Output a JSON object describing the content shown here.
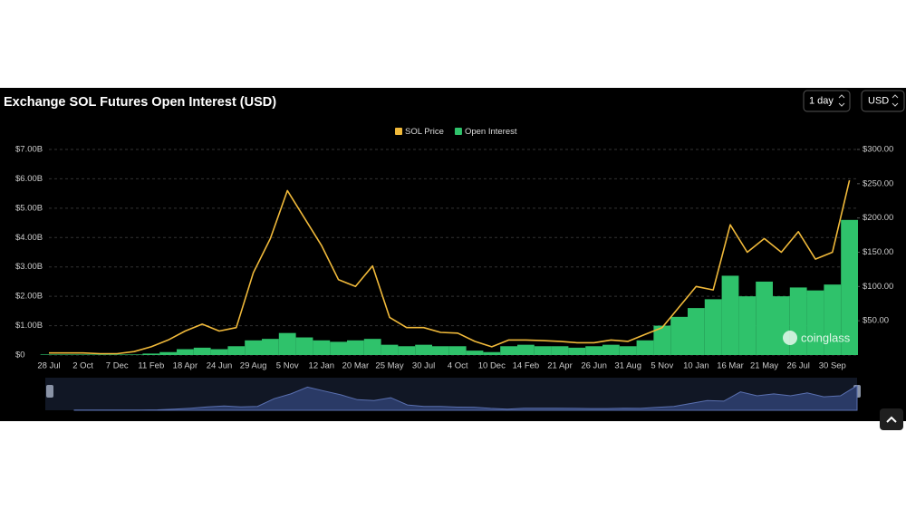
{
  "chart_data": {
    "type": "combo",
    "title": "Exchange SOL Futures Open Interest (USD)",
    "controls": [
      "1 day",
      "USD"
    ],
    "watermark": "coinglass",
    "categories": [
      "28 Jul",
      null,
      "2 Oct",
      null,
      "7 Dec",
      null,
      "11 Feb",
      null,
      "18 Apr",
      null,
      "24 Jun",
      null,
      "29 Aug",
      null,
      "5 Nov",
      null,
      "12 Jan",
      null,
      "20 Mar",
      null,
      "25 May",
      null,
      "30 Jul",
      null,
      "4 Oct",
      null,
      "10 Dec",
      null,
      "14 Feb",
      null,
      "21 Apr",
      null,
      "26 Jun",
      null,
      "31 Aug",
      null,
      "5 Nov",
      null,
      "10 Jan",
      null,
      "16 Mar",
      null,
      "21 May",
      null,
      "26 Jul",
      null,
      "30 Sep",
      null
    ],
    "series": [
      {
        "name": "SOL Price",
        "type": "line",
        "axis": "y2",
        "color": "#f0b93a",
        "values": [
          3,
          3,
          3,
          2,
          2,
          5,
          12,
          22,
          35,
          45,
          35,
          40,
          120,
          170,
          240,
          200,
          160,
          110,
          100,
          130,
          55,
          40,
          40,
          33,
          32,
          20,
          12,
          22,
          22,
          21,
          20,
          18,
          18,
          22,
          20,
          30,
          40,
          70,
          100,
          95,
          190,
          150,
          170,
          150,
          180,
          140,
          150,
          255
        ]
      },
      {
        "name": "Open Interest",
        "type": "bar",
        "color": "#2fc26b",
        "values": [
          0.02,
          0.02,
          0.02,
          0.02,
          0.02,
          0.02,
          0.05,
          0.1,
          0.2,
          0.25,
          0.2,
          0.3,
          0.5,
          0.55,
          0.75,
          0.6,
          0.5,
          0.45,
          0.5,
          0.55,
          0.35,
          0.3,
          0.35,
          0.3,
          0.3,
          0.15,
          0.1,
          0.3,
          0.35,
          0.3,
          0.3,
          0.25,
          0.3,
          0.35,
          0.3,
          0.5,
          1.0,
          1.3,
          1.6,
          1.9,
          2.7,
          2.0,
          2.5,
          2.0,
          2.3,
          2.2,
          2.4,
          4.6
        ]
      }
    ],
    "ylim": [
      0,
      7
    ],
    "yticks": [
      {
        "value": 0,
        "label": "$0"
      },
      {
        "value": 1,
        "label": "$1.00B"
      },
      {
        "value": 2,
        "label": "$2.00B"
      },
      {
        "value": 3,
        "label": "$3.00B"
      },
      {
        "value": 4,
        "label": "$4.00B"
      },
      {
        "value": 5,
        "label": "$5.00B"
      },
      {
        "value": 6,
        "label": "$6.00B"
      },
      {
        "value": 7,
        "label": "$7.00B"
      }
    ],
    "y2lim": [
      0,
      300
    ],
    "y2ticks": [
      {
        "value": 50,
        "label": "$50.00"
      },
      {
        "value": 100,
        "label": "$100.00"
      },
      {
        "value": 150,
        "label": "$150.00"
      },
      {
        "value": 200,
        "label": "$200.00"
      },
      {
        "value": 250,
        "label": "$250.00"
      },
      {
        "value": 300,
        "label": "$300.00"
      }
    ],
    "grid": true,
    "legend": "top"
  }
}
